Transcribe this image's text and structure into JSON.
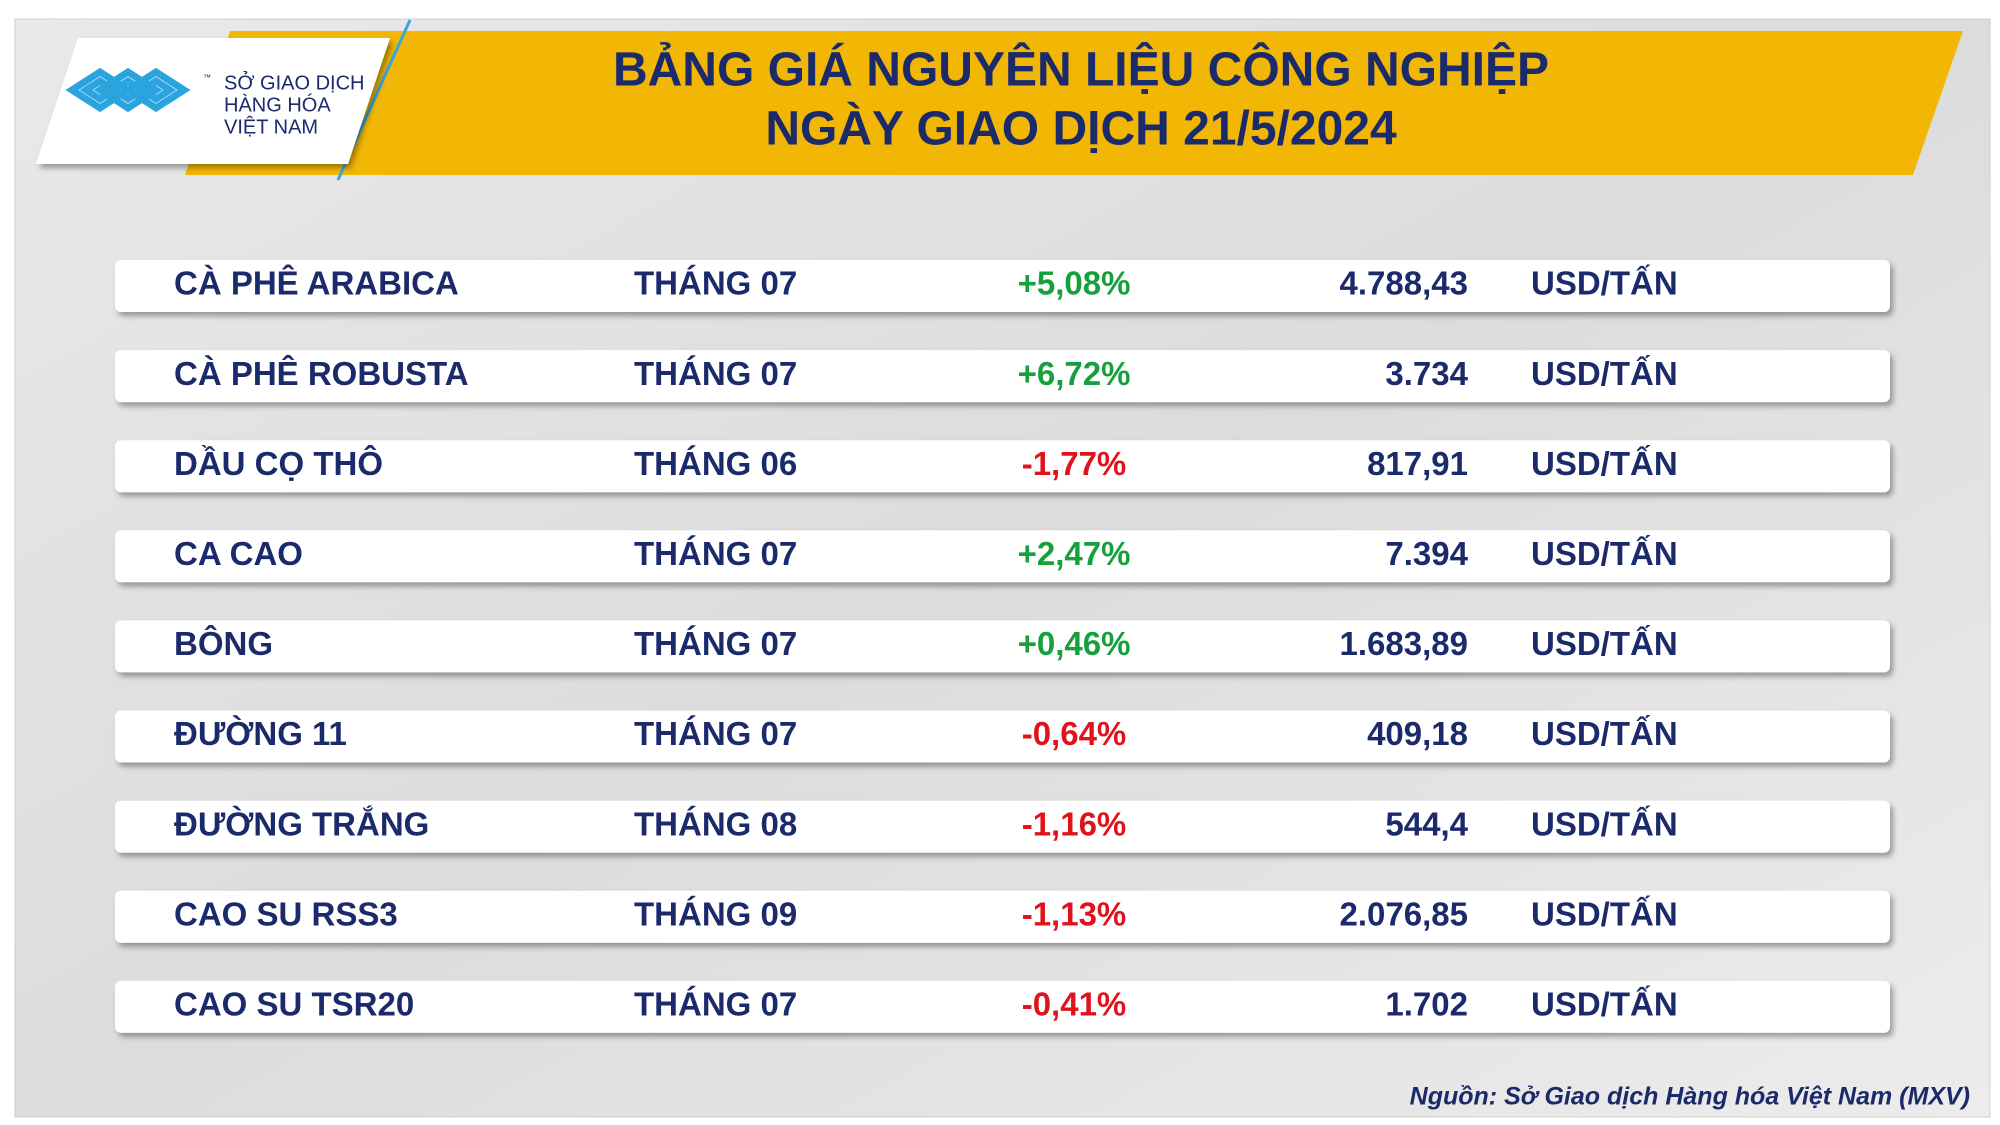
{
  "header": {
    "logo": {
      "tm": "™",
      "lines": [
        "SỞ GIAO DỊCH",
        "HÀNG HÓA",
        "VIỆT NAM"
      ]
    },
    "title": [
      "BẢNG GIÁ NGUYÊN LIỆU CÔNG NGHIỆP",
      "NGÀY GIAO DỊCH 21/5/2024"
    ]
  },
  "table": {
    "rows": [
      {
        "name": "CÀ PHÊ ARABICA",
        "month": "THÁNG 07",
        "change": "+5,08%",
        "price": "4.788,43",
        "unit": "USD/TẤN",
        "color": "#16a03c"
      },
      {
        "name": "CÀ PHÊ ROBUSTA",
        "month": "THÁNG 07",
        "change": "+6,72%",
        "price": "3.734",
        "unit": "USD/TẤN",
        "color": "#16a03c"
      },
      {
        "name": "DẦU CỌ THÔ",
        "month": "THÁNG 06",
        "change": "-1,77%",
        "price": "817,91",
        "unit": "USD/TẤN",
        "color": "#e0131c"
      },
      {
        "name": "CA CAO",
        "month": "THÁNG 07",
        "change": "+2,47%",
        "price": "7.394",
        "unit": "USD/TẤN",
        "color": "#16a03c"
      },
      {
        "name": "BÔNG",
        "month": "THÁNG 07",
        "change": "+0,46%",
        "price": "1.683,89",
        "unit": "USD/TẤN",
        "color": "#16a03c"
      },
      {
        "name": "ĐƯỜNG 11",
        "month": "THÁNG 07",
        "change": "-0,64%",
        "price": "409,18",
        "unit": "USD/TẤN",
        "color": "#e0131c"
      },
      {
        "name": "ĐƯỜNG TRẮNG",
        "month": "THÁNG 08",
        "change": "-1,16%",
        "price": "544,4",
        "unit": "USD/TẤN",
        "color": "#e0131c"
      },
      {
        "name": "CAO SU RSS3",
        "month": "THÁNG 09",
        "change": "-1,13%",
        "price": "2.076,85",
        "unit": "USD/TẤN",
        "color": "#e0131c"
      },
      {
        "name": "CAO SU TSR20",
        "month": "THÁNG 07",
        "change": "-0,41%",
        "price": "1.702",
        "unit": "USD/TẤN",
        "color": "#e0131c"
      }
    ]
  },
  "footer": {
    "source": "Nguồn: Sở Giao dịch Hàng hóa Việt Nam (MXV)"
  }
}
